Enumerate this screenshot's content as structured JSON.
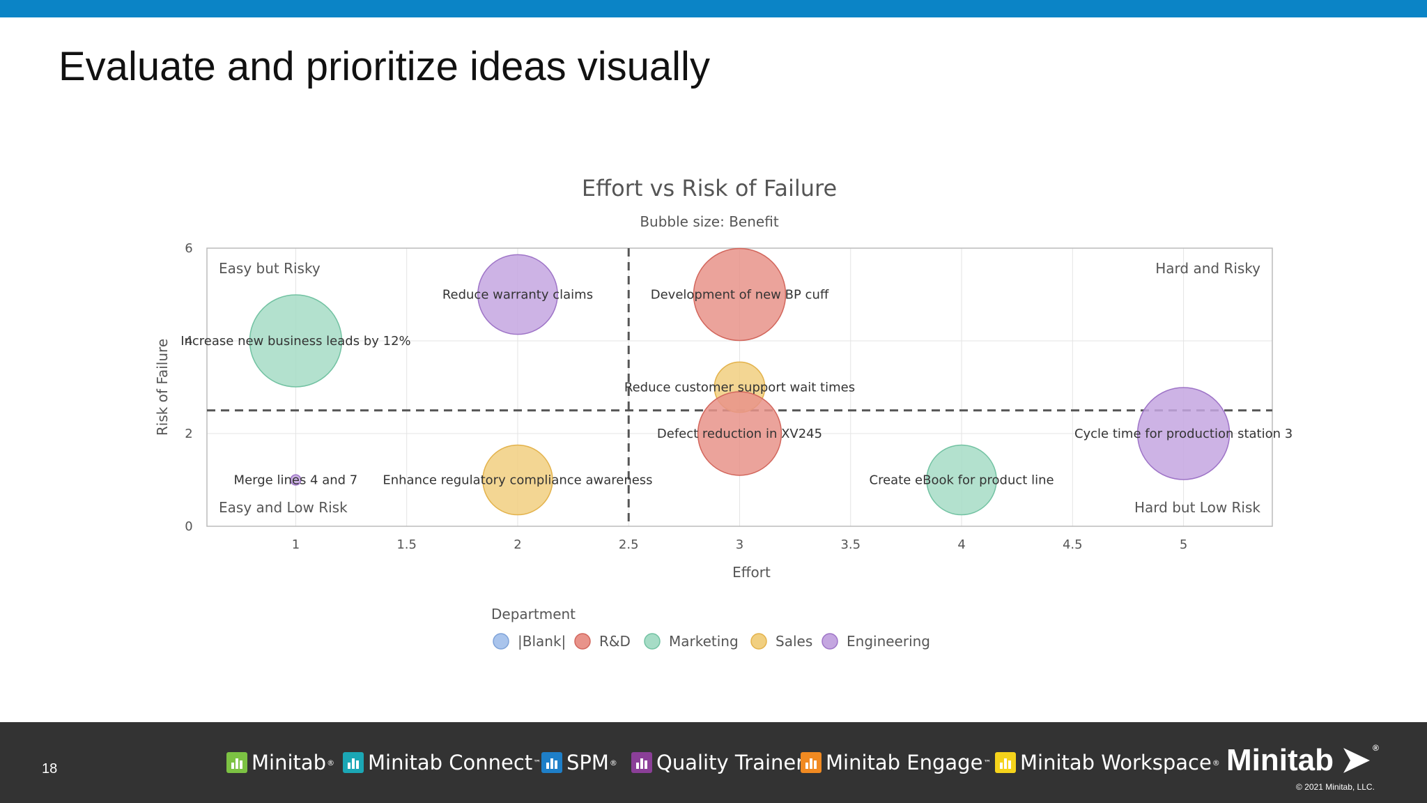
{
  "slide": {
    "title": "Evaluate and prioritize ideas visually",
    "page_number": "18",
    "copyright": "© 2021 Minitab, LLC."
  },
  "footer": {
    "products": [
      {
        "label": "Minitab",
        "mark": "®",
        "icon": "bar-chart-icon",
        "color": "#7cc243"
      },
      {
        "label": "Minitab Connect",
        "mark": "™",
        "icon": "connect-icon",
        "color": "#1ba7b5"
      },
      {
        "label": "SPM",
        "mark": "®",
        "icon": "spm-icon",
        "color": "#1e7fc8"
      },
      {
        "label": "Quality Trainer",
        "mark": "®",
        "icon": "trainer-icon",
        "color": "#8b3f98"
      },
      {
        "label": "Minitab Engage",
        "mark": "™",
        "icon": "engage-icon",
        "color": "#f18a21"
      },
      {
        "label": "Minitab Workspace",
        "mark": "®",
        "icon": "workspace-icon",
        "color": "#f5d31b"
      }
    ],
    "brand": "Minitab",
    "brand_mark": "®"
  },
  "chart_data": {
    "type": "scatter",
    "title": "Effort vs Risk of Failure",
    "subtitle": "Bubble size: Benefit",
    "xlabel": "Effort",
    "ylabel": "Risk of Failure",
    "xlim": [
      0.6,
      5.4
    ],
    "ylim": [
      0,
      6
    ],
    "xticks": [
      1,
      1.5,
      2,
      2.5,
      3,
      3.5,
      4,
      4.5,
      5
    ],
    "yticks": [
      0,
      2,
      4,
      6
    ],
    "grid": true,
    "reference_lines": {
      "x": 2.5,
      "y": 2.5
    },
    "quadrant_labels": {
      "top_left": "Easy but Risky",
      "top_right": "Hard and Risky",
      "bottom_left": "Easy and Low Risk",
      "bottom_right": "Hard but Low Risk"
    },
    "legend": {
      "title": "Department",
      "placement": "bottom",
      "entries": [
        {
          "name": "|Blank|",
          "color": "#a9c4ec"
        },
        {
          "name": "R&D",
          "color": "#e8938a"
        },
        {
          "name": "Marketing",
          "color": "#a6dcc6"
        },
        {
          "name": "Sales",
          "color": "#f1cf80"
        },
        {
          "name": "Engineering",
          "color": "#c4a6e0"
        }
      ]
    },
    "points": [
      {
        "label": "Reduce warranty claims",
        "x": 2,
        "y": 5,
        "size": 3,
        "department": "Engineering"
      },
      {
        "label": "Development of new BP cuff",
        "x": 3,
        "y": 5,
        "size": 4,
        "department": "R&D"
      },
      {
        "label": "Increase new business leads by 12%",
        "x": 1,
        "y": 4,
        "size": 4,
        "department": "Marketing"
      },
      {
        "label": "Reduce customer support wait times",
        "x": 3,
        "y": 3,
        "size": 1.2,
        "department": "Sales"
      },
      {
        "label": "Defect reduction in XV245",
        "x": 3,
        "y": 2,
        "size": 3.3,
        "department": "R&D"
      },
      {
        "label": "Cycle time for production station 3",
        "x": 5,
        "y": 2,
        "size": 4,
        "department": "Engineering"
      },
      {
        "label": "Merge lines 4 and 7",
        "x": 1,
        "y": 1,
        "size": 0.05,
        "department": "Engineering"
      },
      {
        "label": "Enhance regulatory compliance awareness",
        "x": 2,
        "y": 1,
        "size": 2.3,
        "department": "Sales"
      },
      {
        "label": "Create eBook for product line",
        "x": 4,
        "y": 1,
        "size": 2.3,
        "department": "Marketing"
      }
    ]
  }
}
